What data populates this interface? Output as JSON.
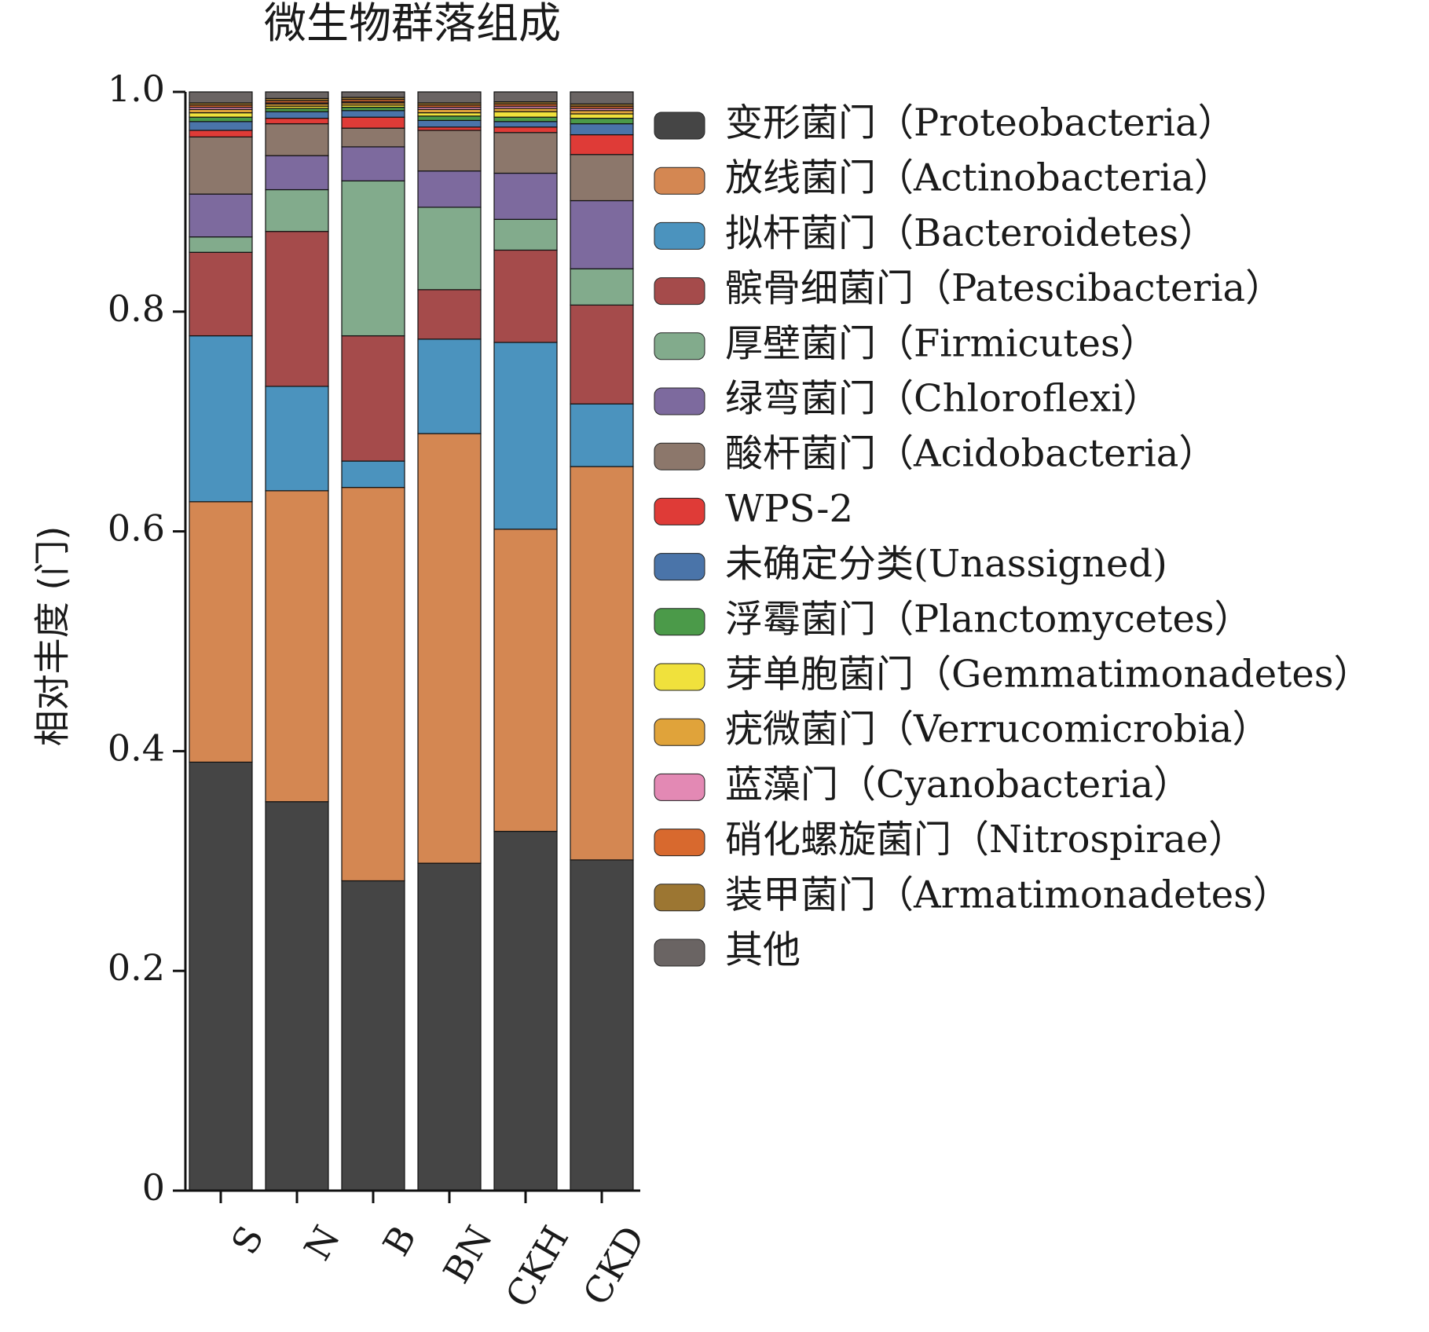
{
  "chart_data": {
    "type": "bar",
    "stacked": true,
    "title": "微生物群落组成",
    "xlabel": "",
    "ylabel": "相对丰度 (门)",
    "ylim": [
      0,
      1.0
    ],
    "yticks": [
      "0",
      "0.2",
      "0.4",
      "0.6",
      "0.8",
      "1.0"
    ],
    "grid": false,
    "legend_position": "right",
    "categories": [
      "S",
      "N",
      "B",
      "BN",
      "CKH",
      "CKD"
    ],
    "series": [
      {
        "name": "变形菌门（Proteobacteria）",
        "color": "#454545",
        "values": [
          0.39,
          0.354,
          0.282,
          0.298,
          0.327,
          0.301
        ]
      },
      {
        "name": "放线菌门（Actinobacteria）",
        "color": "#d48752",
        "values": [
          0.237,
          0.283,
          0.358,
          0.391,
          0.275,
          0.358
        ]
      },
      {
        "name": "拟杆菌门（Bacteroidetes）",
        "color": "#4b93be",
        "values": [
          0.151,
          0.095,
          0.024,
          0.086,
          0.17,
          0.057
        ]
      },
      {
        "name": "髌骨细菌门（Patescibacteria）",
        "color": "#a54b4b",
        "values": [
          0.076,
          0.141,
          0.114,
          0.045,
          0.084,
          0.09
        ]
      },
      {
        "name": "厚壁菌门（Firmicutes）",
        "color": "#82ab8c",
        "values": [
          0.014,
          0.038,
          0.141,
          0.075,
          0.028,
          0.033
        ]
      },
      {
        "name": "绿弯菌门（Chloroflexi）",
        "color": "#7d6a9e",
        "values": [
          0.039,
          0.031,
          0.031,
          0.033,
          0.042,
          0.062
        ]
      },
      {
        "name": "酸杆菌门（Acidobacteria）",
        "color": "#8c776b",
        "values": [
          0.052,
          0.029,
          0.017,
          0.037,
          0.037,
          0.042
        ]
      },
      {
        "name": "WPS-2",
        "color": "#df3b37",
        "values": [
          0.006,
          0.005,
          0.01,
          0.003,
          0.005,
          0.018
        ]
      },
      {
        "name": "未确定分类(Unassigned)",
        "color": "#4a74a9",
        "values": [
          0.008,
          0.006,
          0.006,
          0.006,
          0.005,
          0.01
        ]
      },
      {
        "name": "浮霉菌门（Planctomycetes）",
        "color": "#4b9a49",
        "values": [
          0.004,
          0.003,
          0.003,
          0.004,
          0.004,
          0.005
        ]
      },
      {
        "name": "芽单胞菌门（Gemmatimonadetes）",
        "color": "#f0e13c",
        "values": [
          0.004,
          0.002,
          0.002,
          0.003,
          0.005,
          0.004
        ]
      },
      {
        "name": "疣微菌门（Verrucomicrobia）",
        "color": "#e0a33a",
        "values": [
          0.003,
          0.002,
          0.002,
          0.003,
          0.003,
          0.003
        ]
      },
      {
        "name": "蓝藻门（Cyanobacteria）",
        "color": "#e389b4",
        "values": [
          0.002,
          0.001,
          0.001,
          0.002,
          0.002,
          0.002
        ]
      },
      {
        "name": "硝化螺旋菌门（Nitrospirae）",
        "color": "#d8692e",
        "values": [
          0.002,
          0.002,
          0.002,
          0.002,
          0.002,
          0.002
        ]
      },
      {
        "name": "装甲菌门（Armatimonadetes）",
        "color": "#9c7632",
        "values": [
          0.002,
          0.002,
          0.002,
          0.002,
          0.002,
          0.002
        ]
      },
      {
        "name": "其他",
        "color": "#6a6463",
        "values": [
          0.01,
          0.006,
          0.005,
          0.01,
          0.009,
          0.011
        ]
      }
    ]
  }
}
